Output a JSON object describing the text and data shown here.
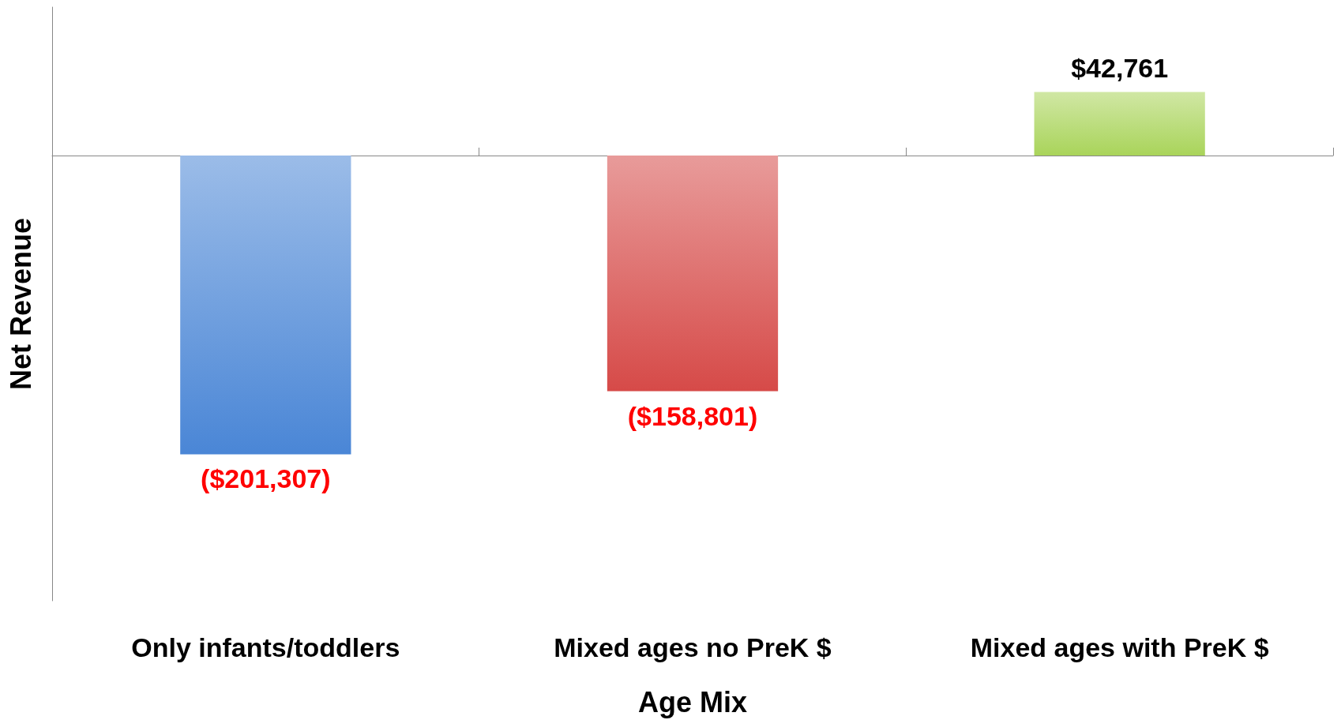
{
  "chart_data": {
    "type": "bar",
    "xlabel": "Age Mix",
    "ylabel": "Net Revenue",
    "categories": [
      "Only infants/toddlers",
      "Mixed ages no PreK $",
      "Mixed ages with PreK $"
    ],
    "values": [
      -201307,
      -158801,
      42761
    ],
    "colors": [
      "#4a86d6",
      "#d64a48",
      "#a9d45a"
    ],
    "value_labels": [
      "($201,307)",
      "($158,801)",
      "$42,761"
    ],
    "ylim": [
      -300000,
      100000
    ]
  }
}
